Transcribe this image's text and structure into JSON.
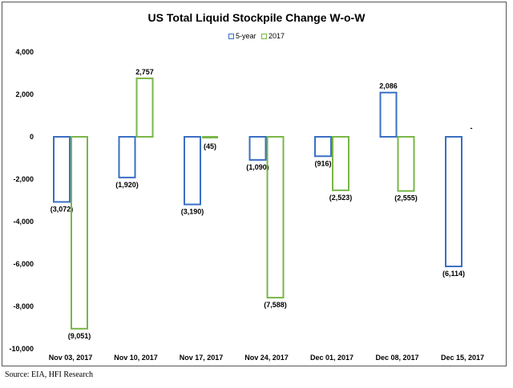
{
  "chart_data": {
    "type": "bar",
    "title": "US Total Liquid Stockpile Change W-o-W",
    "categories": [
      "Nov 03, 2017",
      "Nov 10, 2017",
      "Nov 17, 2017",
      "Nov 24, 2017",
      "Dec 01, 2017",
      "Dec 08, 2017",
      "Dec 15, 2017"
    ],
    "series": [
      {
        "name": "5-year",
        "values": [
          -3072,
          -1920,
          -3190,
          -1090,
          -916,
          2086,
          -6114
        ],
        "labels": [
          "(3,072)",
          "(1,920)",
          "(3,190)",
          "(1,090)",
          "(916)",
          "2,086",
          "(6,114)"
        ],
        "color": "#3a6fc4"
      },
      {
        "name": "2017",
        "values": [
          -9051,
          2757,
          -45,
          -7588,
          -2523,
          -2555,
          null
        ],
        "labels": [
          "(9,051)",
          "2,757",
          "(45)",
          "(7,588)",
          "(2,523)",
          "(2,555)",
          "-"
        ],
        "color": "#7ab648"
      }
    ],
    "ylim": [
      -10000,
      4000
    ],
    "yticks": [
      4000,
      2000,
      0,
      -2000,
      -4000,
      -6000,
      -8000,
      -10000
    ],
    "ytick_labels": [
      "4,000",
      "2,000",
      "0",
      "-2,000",
      "-4,000",
      "-6,000",
      "-8,000",
      "-10,000"
    ],
    "legend_position": "top-center",
    "grid": false
  },
  "source": "Source: EIA, HFI Research"
}
